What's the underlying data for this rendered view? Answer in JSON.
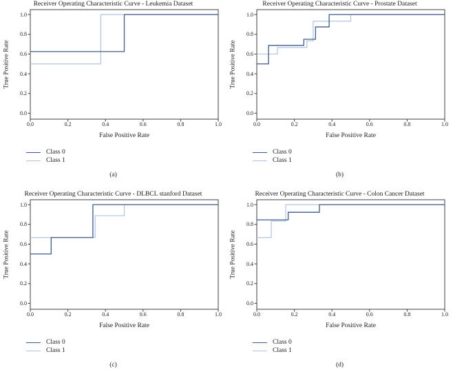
{
  "figure": {
    "background": "#ffffff",
    "layout": "2x2 grid of ROC subplots"
  },
  "colors": {
    "class0_line": "#3d5a8a",
    "class1_line": "#aec4e2",
    "axis": "#3f3f3f",
    "text": "#1a1a1a"
  },
  "chart_data": [
    {
      "type": "line",
      "subtype": "roc-step-curve",
      "title": "Receiver Operating Characteristic Curve - Leukemia Dataset",
      "caption": "(a)",
      "xlabel": "False Positive Rate",
      "ylabel": "True Positive Rate",
      "xlim": [
        0,
        1
      ],
      "ylim": [
        -0.06,
        1.05
      ],
      "xticks": [
        "0.0",
        "0.2",
        "0.4",
        "0.6",
        "0.8",
        "1.0"
      ],
      "yticks": [
        "0.0",
        "0.2",
        "0.4",
        "0.6",
        "0.8",
        "1.0"
      ],
      "grid": false,
      "legend_position": "below-left",
      "series": [
        {
          "name": "Class 0",
          "color_key": "class0_line",
          "x": [
            0,
            0.5,
            0.5,
            1
          ],
          "y": [
            0.625,
            0.625,
            1,
            1
          ]
        },
        {
          "name": "Class 1",
          "color_key": "class1_line",
          "x": [
            0,
            0.375,
            0.375,
            1
          ],
          "y": [
            0.5,
            0.5,
            1,
            1
          ]
        }
      ]
    },
    {
      "type": "line",
      "subtype": "roc-step-curve",
      "title": "Receiver Operating Characteristic Curve - Prostate Dataset",
      "caption": "(b)",
      "xlabel": "False Positive Rate",
      "ylabel": "True Positive Rate",
      "xlim": [
        0,
        1
      ],
      "ylim": [
        -0.06,
        1.05
      ],
      "xticks": [
        "0.0",
        "0.2",
        "0.4",
        "0.6",
        "0.8",
        "1.0"
      ],
      "yticks": [
        "0.0",
        "0.2",
        "0.4",
        "0.6",
        "0.8",
        "1.0"
      ],
      "grid": false,
      "legend_position": "below-left",
      "series": [
        {
          "name": "Class 0",
          "color_key": "class0_line",
          "x": [
            0,
            0.0625,
            0.0625,
            0.25,
            0.25,
            0.3125,
            0.3125,
            0.385,
            0.385,
            1
          ],
          "y": [
            0.5,
            0.5,
            0.6875,
            0.6875,
            0.75,
            0.75,
            0.875,
            0.875,
            1,
            1
          ]
        },
        {
          "name": "Class 1",
          "color_key": "class1_line",
          "x": [
            0,
            0.11,
            0.11,
            0.2667,
            0.2667,
            0.3,
            0.3,
            0.5,
            0.5,
            1
          ],
          "y": [
            0.6,
            0.6,
            0.667,
            0.667,
            0.733,
            0.733,
            0.933,
            0.933,
            1,
            1
          ]
        }
      ]
    },
    {
      "type": "line",
      "subtype": "roc-step-curve",
      "title": "Receiver Operating Characteristic Curve - DLBCL stanford Dataset",
      "caption": "(c)",
      "xlabel": "False Positive Rate",
      "ylabel": "True Positive Rate",
      "xlim": [
        0,
        1
      ],
      "ylim": [
        -0.06,
        1.05
      ],
      "xticks": [
        "0.0",
        "0.2",
        "0.4",
        "0.6",
        "0.8",
        "1.0"
      ],
      "yticks": [
        "0.0",
        "0.2",
        "0.4",
        "0.6",
        "0.8",
        "1.0"
      ],
      "grid": false,
      "legend_position": "below-left",
      "series": [
        {
          "name": "Class 0",
          "color_key": "class0_line",
          "x": [
            0,
            0.111,
            0.111,
            0.333,
            0.333,
            1
          ],
          "y": [
            0.5,
            0.5,
            0.667,
            0.667,
            1,
            1
          ]
        },
        {
          "name": "Class 1",
          "color_key": "class1_line",
          "x": [
            0,
            0.345,
            0.345,
            0.5,
            0.5,
            1
          ],
          "y": [
            0.667,
            0.667,
            0.889,
            0.889,
            1,
            1
          ]
        }
      ]
    },
    {
      "type": "line",
      "subtype": "roc-step-curve",
      "title": "Receiver Operating Characteristic Curve - Colon Cancer Dataset",
      "caption": "(d)",
      "xlabel": "False Positive Rate",
      "ylabel": "True Positive Rate",
      "xlim": [
        0,
        1
      ],
      "ylim": [
        -0.06,
        1.05
      ],
      "xticks": [
        "0.0",
        "0.2",
        "0.4",
        "0.6",
        "0.8",
        "1.0"
      ],
      "yticks": [
        "0.0",
        "0.2",
        "0.4",
        "0.6",
        "0.8",
        "1.0"
      ],
      "grid": false,
      "legend_position": "below-left",
      "series": [
        {
          "name": "Class 0",
          "color_key": "class0_line",
          "x": [
            0,
            0.167,
            0.167,
            0.333,
            0.333,
            1
          ],
          "y": [
            0.846,
            0.846,
            0.923,
            0.923,
            1,
            1
          ]
        },
        {
          "name": "Class 1",
          "color_key": "class1_line",
          "x": [
            0,
            0.077,
            0.077,
            0.154,
            0.154,
            1
          ],
          "y": [
            0.667,
            0.667,
            0.833,
            0.833,
            1,
            1
          ]
        }
      ]
    }
  ]
}
